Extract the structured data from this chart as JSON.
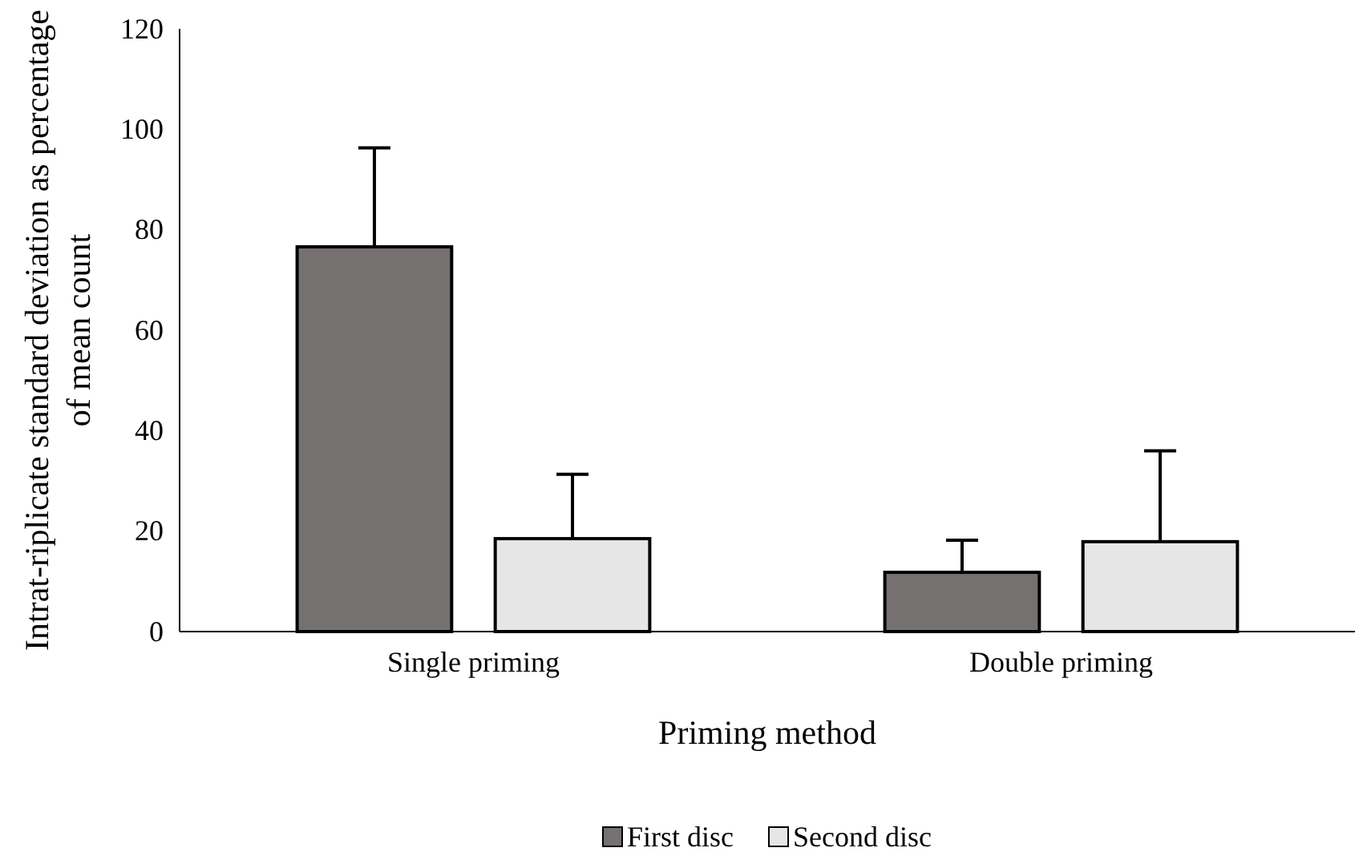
{
  "chart_data": {
    "type": "bar",
    "xlabel": "Priming method",
    "ylabel": "Intrat-riplicate standard deviation as percentage of mean count",
    "categories": [
      "Single priming",
      "Double priming"
    ],
    "series": [
      {
        "name": "First disc",
        "color": "#767171",
        "values": [
          76.6,
          11.8
        ],
        "errors": [
          [
            76.6,
            96.3
          ],
          [
            11.8,
            18.2
          ]
        ]
      },
      {
        "name": "Second disc",
        "color": "#e7e6e6",
        "values": [
          18.5,
          17.9
        ],
        "errors": [
          [
            18.5,
            31.3
          ],
          [
            17.9,
            36
          ]
        ]
      }
    ],
    "ylim": [
      0,
      120
    ],
    "yticks": [
      0,
      20,
      40,
      60,
      80,
      100,
      120
    ],
    "grid": false,
    "legend": "bottom"
  }
}
